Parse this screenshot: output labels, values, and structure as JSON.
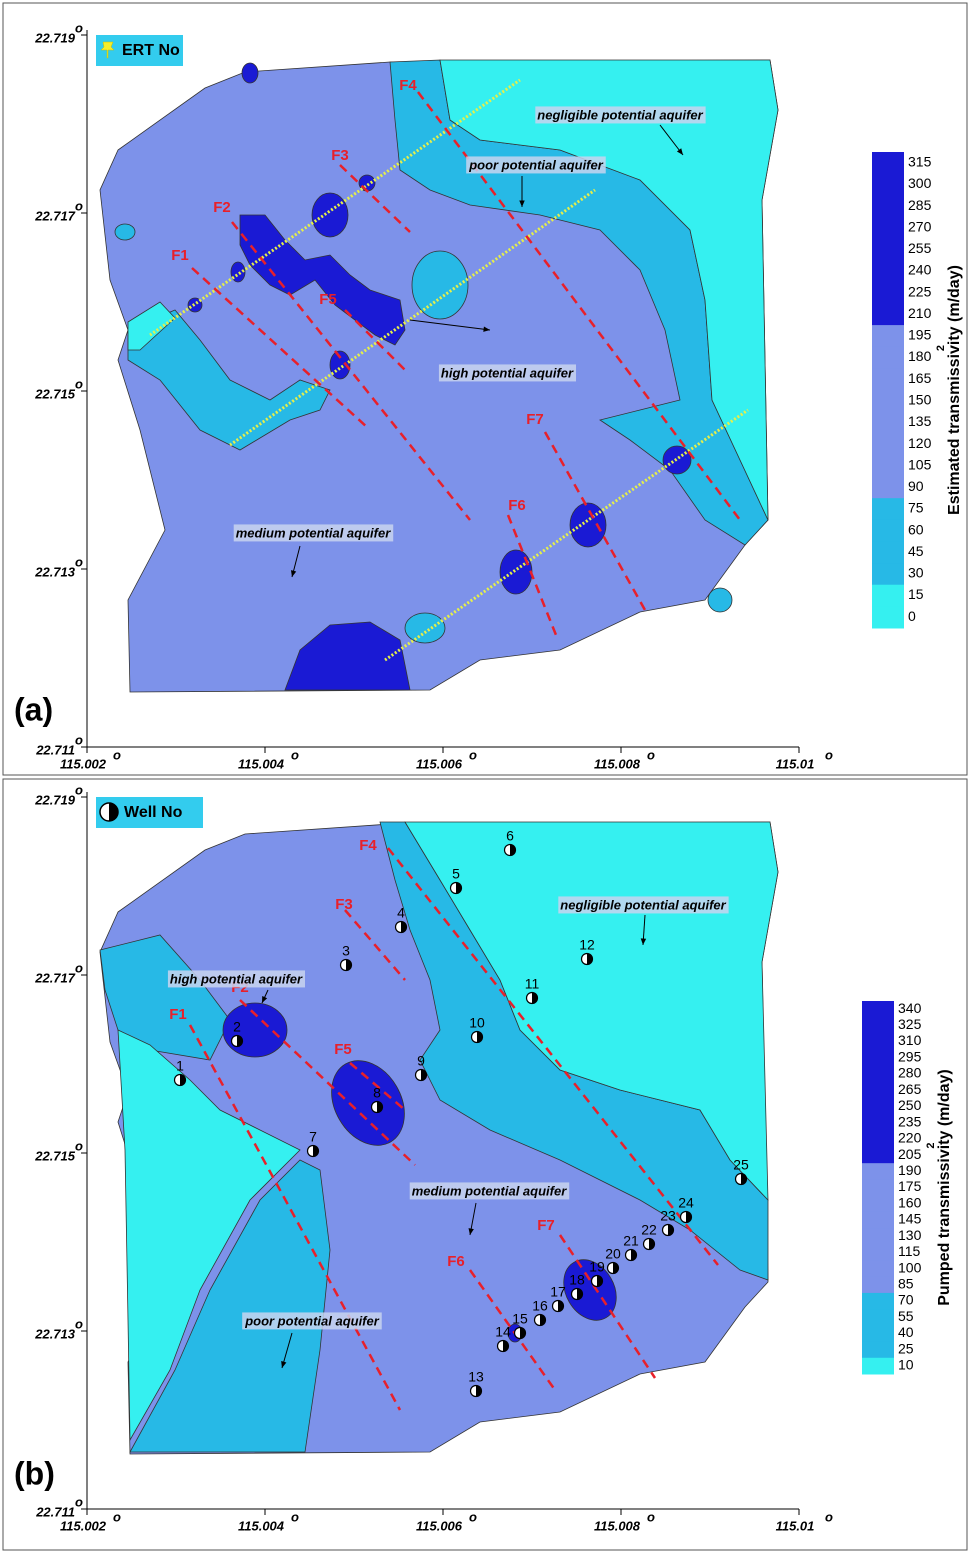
{
  "degree_symbol": "o",
  "x_ticks": [
    115.002,
    115.004,
    115.006,
    115.008,
    115.01
  ],
  "y_ticks": [
    22.719,
    22.717,
    22.715,
    22.713,
    22.711
  ],
  "panels": [
    {
      "label": "(a)",
      "legend": "ERT No",
      "colorbar": {
        "title": "Estimated transmissivity (m/day)",
        "superscript": "2",
        "ticks": [
          315,
          300,
          285,
          270,
          255,
          240,
          225,
          210,
          195,
          180,
          165,
          150,
          135,
          120,
          105,
          90,
          75,
          60,
          45,
          30,
          15,
          0
        ],
        "breaks": [
          210,
          90,
          30
        ],
        "colors": [
          "#1a1ad4",
          "#7d92ea",
          "#27b9e6",
          "#35f0f0"
        ]
      },
      "faults": [
        "F1",
        "F2",
        "F3",
        "F4",
        "F5",
        "F6",
        "F7"
      ],
      "annotations": [
        "negligible potential aquifer",
        "poor potential aquifer",
        "high potential aquifer",
        "medium potential aquifer"
      ]
    },
    {
      "label": "(b)",
      "legend": "Well No",
      "colorbar": {
        "title": "Pumped transmissivity (m/day)",
        "superscript": "2",
        "ticks": [
          340,
          325,
          310,
          295,
          280,
          265,
          250,
          235,
          220,
          205,
          190,
          175,
          160,
          145,
          130,
          115,
          100,
          85,
          70,
          55,
          40,
          25,
          10
        ],
        "breaks": [
          205,
          85,
          25
        ],
        "colors": [
          "#1a1ad4",
          "#7d92ea",
          "#27b9e6",
          "#35f0f0"
        ]
      },
      "faults": [
        "F1",
        "F2",
        "F3",
        "F4",
        "F5",
        "F6",
        "F7"
      ],
      "annotations": [
        "negligible potential aquifer",
        "high potential aquifer",
        "medium potential aquifer",
        "poor potential aquifer"
      ],
      "wells": [
        "1",
        "2",
        "3",
        "4",
        "5",
        "6",
        "7",
        "8",
        "9",
        "10",
        "11",
        "12",
        "13",
        "14",
        "15",
        "16",
        "17",
        "18",
        "19",
        "20",
        "21",
        "22",
        "23",
        "24",
        "25"
      ]
    }
  ]
}
